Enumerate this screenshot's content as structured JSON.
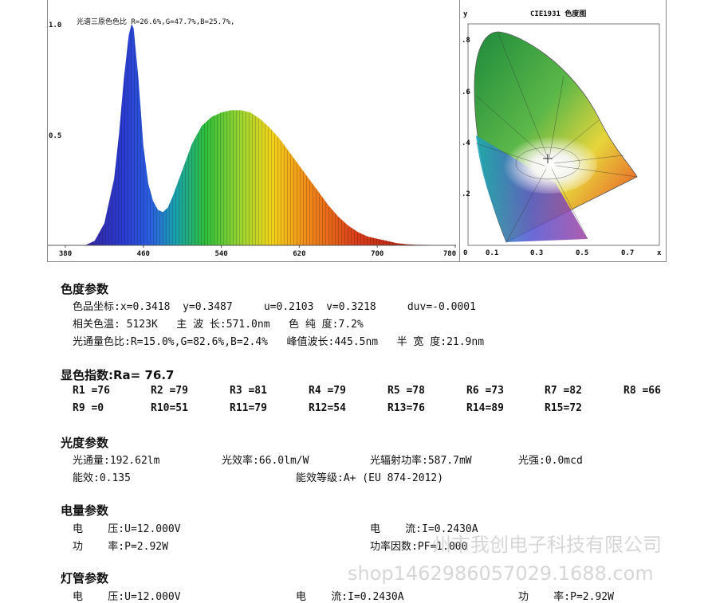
{
  "spectrum": {
    "legend": "光谱三原色色比  R=26.6%,G=47.7%,B=25.7%,",
    "y_ticks": [
      "1.0",
      "0.5"
    ],
    "x_ticks": [
      "380",
      "460",
      "540",
      "620",
      "700",
      "780"
    ]
  },
  "cie": {
    "title": "CIE1931 色度图",
    "y_label": "y",
    "x_label": "x",
    "y_ticks": [
      ".8",
      ".6",
      ".4",
      ".2"
    ],
    "x_ticks": [
      "0",
      "0.1",
      "0.3",
      "0.5",
      "0.7"
    ]
  },
  "chart_data": {
    "type": "area",
    "xlabel": "",
    "ylabel": "",
    "xlim": [
      380,
      780
    ],
    "ylim": [
      0,
      1.0
    ],
    "x": [
      380,
      390,
      400,
      410,
      420,
      430,
      435,
      440,
      445,
      448,
      450,
      455,
      460,
      465,
      470,
      475,
      480,
      485,
      490,
      500,
      510,
      520,
      530,
      540,
      550,
      560,
      570,
      580,
      590,
      600,
      610,
      620,
      630,
      640,
      650,
      660,
      670,
      680,
      690,
      700,
      710,
      720,
      730,
      740,
      750,
      760,
      770,
      780
    ],
    "y": [
      0,
      0,
      0,
      0.02,
      0.1,
      0.3,
      0.5,
      0.75,
      0.95,
      1.0,
      0.98,
      0.75,
      0.45,
      0.28,
      0.2,
      0.16,
      0.15,
      0.17,
      0.22,
      0.34,
      0.46,
      0.54,
      0.58,
      0.6,
      0.61,
      0.61,
      0.6,
      0.57,
      0.53,
      0.48,
      0.42,
      0.36,
      0.3,
      0.24,
      0.18,
      0.13,
      0.09,
      0.06,
      0.04,
      0.03,
      0.02,
      0.01,
      0.005,
      0.003,
      0.002,
      0.001,
      0,
      0
    ]
  },
  "color_params": {
    "title": "色度参数",
    "line1": "色品坐标:x=0.3418  y=0.3487     u=0.2103  v=0.3218     duv=-0.0001",
    "line2": "相关色温: 5123K   主 波 长:571.0nm   色 纯 度:7.2%",
    "line3": "光通量色比:R=15.0%,G=82.6%,B=2.4%   峰值波长:445.5nm   半 宽 度:21.9nm"
  },
  "cri": {
    "title": "显色指数:Ra= 76.7",
    "row1": [
      "R1 =76",
      "R2 =79",
      "R3 =81",
      "R4 =79",
      "R5 =78",
      "R6 =73",
      "R7 =82",
      "R8 =66"
    ],
    "row2": [
      "R9 =0",
      "R10=51",
      "R11=79",
      "R12=54",
      "R13=76",
      "R14=89",
      "R15=72"
    ]
  },
  "photo_params": {
    "title": "光度参数",
    "flux": "光通量:192.62lm",
    "efficacy": "光效率:66.0lm/W",
    "radiant": "光辐射功率:587.7mW",
    "intensity": "光强:0.0mcd",
    "energy_eff": "能效:0.135",
    "energy_grade": "能效等级:A+ (EU 874-2012)"
  },
  "elec_params": {
    "title": "电量参数",
    "voltage": "电    压:U=12.000V",
    "current": "电    流:I=0.2430A",
    "power": "功    率:P=2.92W",
    "pf": "功率因数:PF=1.000"
  },
  "lamp_params": {
    "title": "灯管参数",
    "voltage": "电    压:U=12.000V",
    "current": "电    流:I=0.2430A",
    "power": "功    率:P=2.92W"
  },
  "watermark": {
    "line1": "州市我创电子科技有限公司",
    "line2": "shop1462986057029.1688.com"
  }
}
